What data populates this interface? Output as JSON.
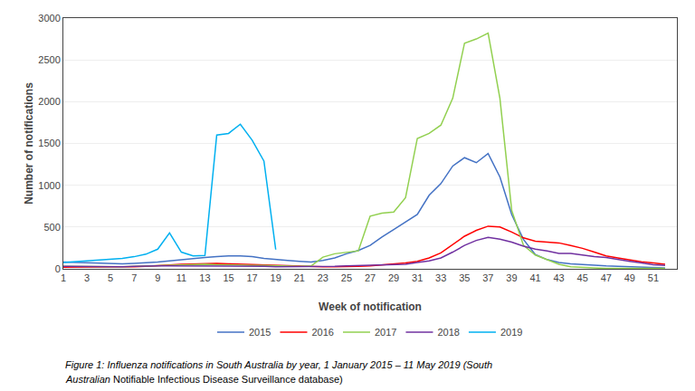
{
  "chart_data": {
    "type": "line",
    "x_label": "Week of notification",
    "y_label": "Number of notifications",
    "annotations": [
      "Figure 1: Influenza notifications in South Australia by year, 1 January 2015 – 11 May 2019 (South",
      "Australian Notifiable Infectious Disease Surveillance database)"
    ],
    "xlim": [
      1,
      53
    ],
    "xticks": [
      1,
      3,
      5,
      7,
      9,
      11,
      13,
      15,
      17,
      19,
      21,
      23,
      25,
      27,
      29,
      31,
      33,
      35,
      37,
      39,
      41,
      43,
      45,
      47,
      49,
      51
    ],
    "ylim": [
      0,
      3000
    ],
    "yticks": [
      0,
      500,
      1000,
      1500,
      2000,
      2500,
      3000
    ],
    "grid": "y",
    "legend": "bottom",
    "series": [
      {
        "name": "2015",
        "color": "#4472C4",
        "x": [
          1,
          2,
          3,
          4,
          5,
          6,
          7,
          8,
          9,
          10,
          11,
          12,
          13,
          14,
          15,
          16,
          17,
          18,
          19,
          20,
          21,
          22,
          23,
          24,
          25,
          26,
          27,
          28,
          29,
          30,
          31,
          32,
          33,
          34,
          35,
          36,
          37,
          38,
          39,
          40,
          41,
          42,
          43,
          44,
          45,
          46,
          47,
          48,
          49,
          50,
          51,
          52
        ],
        "values": [
          80,
          75,
          70,
          65,
          60,
          60,
          65,
          70,
          80,
          95,
          110,
          125,
          135,
          145,
          155,
          155,
          145,
          125,
          110,
          100,
          90,
          80,
          100,
          130,
          180,
          220,
          280,
          380,
          470,
          560,
          650,
          880,
          1020,
          1230,
          1330,
          1270,
          1380,
          1100,
          650,
          350,
          170,
          110,
          75,
          60,
          50,
          40,
          35,
          30,
          25,
          20,
          15,
          10
        ]
      },
      {
        "name": "2016",
        "color": "#FF0000",
        "x": [
          1,
          2,
          3,
          4,
          5,
          6,
          7,
          8,
          9,
          10,
          11,
          12,
          13,
          14,
          15,
          16,
          17,
          18,
          19,
          20,
          21,
          22,
          23,
          24,
          25,
          26,
          27,
          28,
          29,
          30,
          31,
          32,
          33,
          34,
          35,
          36,
          37,
          38,
          39,
          40,
          41,
          42,
          43,
          44,
          45,
          46,
          47,
          48,
          49,
          50,
          51,
          52
        ],
        "values": [
          20,
          20,
          20,
          20,
          20,
          20,
          25,
          30,
          35,
          45,
          55,
          60,
          65,
          65,
          60,
          55,
          50,
          45,
          40,
          35,
          30,
          25,
          25,
          25,
          25,
          30,
          35,
          45,
          55,
          70,
          90,
          130,
          190,
          290,
          390,
          460,
          510,
          500,
          440,
          370,
          330,
          320,
          310,
          280,
          245,
          200,
          155,
          130,
          105,
          85,
          70,
          55
        ]
      },
      {
        "name": "2017",
        "color": "#92D050",
        "x": [
          1,
          2,
          3,
          4,
          5,
          6,
          7,
          8,
          9,
          10,
          11,
          12,
          13,
          14,
          15,
          16,
          17,
          18,
          19,
          20,
          21,
          22,
          23,
          24,
          25,
          26,
          27,
          28,
          29,
          30,
          31,
          32,
          33,
          34,
          35,
          36,
          37,
          38,
          39,
          40,
          41,
          42,
          43,
          44,
          45,
          46,
          47,
          48,
          49,
          50,
          51,
          52
        ],
        "values": [
          30,
          28,
          25,
          25,
          25,
          25,
          30,
          35,
          40,
          45,
          50,
          55,
          55,
          50,
          45,
          40,
          40,
          40,
          35,
          30,
          30,
          35,
          140,
          180,
          195,
          215,
          630,
          665,
          680,
          850,
          1560,
          1620,
          1720,
          2040,
          2700,
          2750,
          2820,
          2040,
          700,
          280,
          165,
          110,
          55,
          25,
          15,
          10,
          5,
          5,
          5,
          5,
          5,
          5
        ]
      },
      {
        "name": "2018",
        "color": "#7030A0",
        "x": [
          1,
          2,
          3,
          4,
          5,
          6,
          7,
          8,
          9,
          10,
          11,
          12,
          13,
          14,
          15,
          16,
          17,
          18,
          19,
          20,
          21,
          22,
          23,
          24,
          25,
          26,
          27,
          28,
          29,
          30,
          31,
          32,
          33,
          34,
          35,
          36,
          37,
          38,
          39,
          40,
          41,
          42,
          43,
          44,
          45,
          46,
          47,
          48,
          49,
          50,
          51,
          52
        ],
        "values": [
          30,
          28,
          25,
          25,
          25,
          25,
          30,
          35,
          35,
          35,
          35,
          35,
          35,
          30,
          30,
          30,
          30,
          30,
          25,
          25,
          25,
          25,
          25,
          30,
          35,
          40,
          40,
          45,
          50,
          55,
          75,
          95,
          130,
          200,
          280,
          340,
          375,
          355,
          320,
          270,
          235,
          215,
          185,
          185,
          165,
          145,
          135,
          110,
          90,
          70,
          50,
          40
        ]
      },
      {
        "name": "2019",
        "color": "#00B0F0",
        "x": [
          1,
          2,
          3,
          4,
          5,
          6,
          7,
          8,
          9,
          10,
          11,
          12,
          13,
          14,
          15,
          16,
          17,
          18,
          19
        ],
        "values": [
          75,
          85,
          100,
          110,
          115,
          125,
          145,
          175,
          235,
          430,
          200,
          155,
          160,
          1600,
          1620,
          1730,
          1540,
          1290,
          230
        ]
      }
    ]
  }
}
